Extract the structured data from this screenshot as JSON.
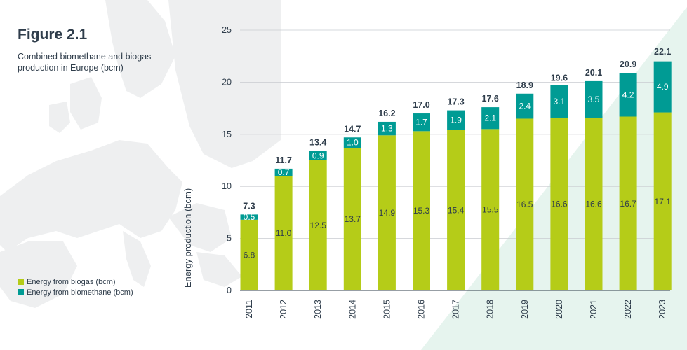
{
  "figure": {
    "title": "Figure 2.1",
    "subtitle": "Combined biomethane and biogas production in Europe (bcm)"
  },
  "legend": {
    "placement": "bottom-left",
    "items": [
      {
        "label": "Energy from biogas (bcm)",
        "color": "#b5cc18"
      },
      {
        "label": "Energy from biomethane (bcm)",
        "color": "#009b94"
      }
    ]
  },
  "chart_data": {
    "type": "bar",
    "stacked": true,
    "title": "",
    "xlabel": "",
    "ylabel": "Energy production (bcm)",
    "ylim": [
      0,
      25
    ],
    "yticks": [
      0,
      5,
      10,
      15,
      20,
      25
    ],
    "grid": true,
    "categories": [
      "2011",
      "2012",
      "2013",
      "2014",
      "2015",
      "2016",
      "2017",
      "2018",
      "2019",
      "2020",
      "2021",
      "2022",
      "2023"
    ],
    "series": [
      {
        "name": "Energy from biogas (bcm)",
        "color": "#b5cc18",
        "values": [
          6.8,
          11.0,
          12.5,
          13.7,
          14.9,
          15.3,
          15.4,
          15.5,
          16.5,
          16.6,
          16.6,
          16.7,
          17.1
        ]
      },
      {
        "name": "Energy from biomethane (bcm)",
        "color": "#009b94",
        "values": [
          0.5,
          0.7,
          0.9,
          1.0,
          1.3,
          1.7,
          1.9,
          2.1,
          2.4,
          3.1,
          3.5,
          4.2,
          4.9
        ]
      }
    ],
    "totals": [
      7.3,
      11.7,
      13.4,
      14.7,
      16.2,
      17.0,
      17.3,
      17.6,
      18.9,
      19.6,
      20.1,
      20.9,
      22.1
    ]
  }
}
